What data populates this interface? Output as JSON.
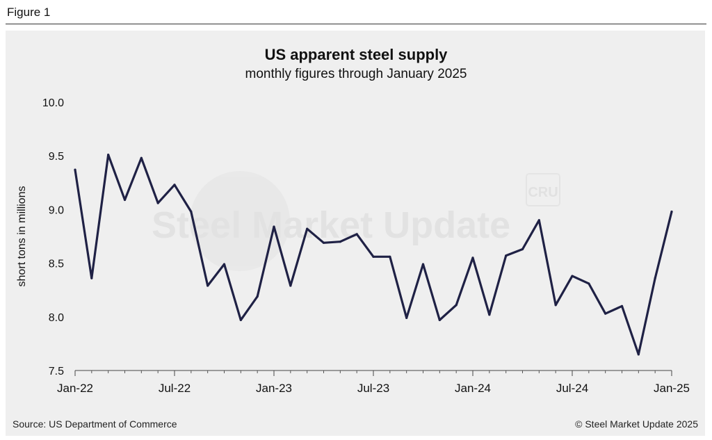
{
  "figure_label": "Figure 1",
  "chart_data": {
    "type": "line",
    "title": "US apparent steel supply",
    "subtitle": "monthly figures through January 2025",
    "xlabel": "",
    "ylabel": "short tons in millions",
    "ylim": [
      7.5,
      10.0
    ],
    "yticks": [
      "7.5",
      "8.0",
      "8.5",
      "9.0",
      "9.5",
      "10.0"
    ],
    "xtick_labels": [
      {
        "index": 0,
        "label": "Jan-22"
      },
      {
        "index": 6,
        "label": "Jul-22"
      },
      {
        "index": 12,
        "label": "Jan-23"
      },
      {
        "index": 18,
        "label": "Jul-23"
      },
      {
        "index": 24,
        "label": "Jan-24"
      },
      {
        "index": 30,
        "label": "Jul-24"
      },
      {
        "index": 36,
        "label": "Jan-25"
      }
    ],
    "categories": [
      "Jan-22",
      "Feb-22",
      "Mar-22",
      "Apr-22",
      "May-22",
      "Jun-22",
      "Jul-22",
      "Aug-22",
      "Sep-22",
      "Oct-22",
      "Nov-22",
      "Dec-22",
      "Jan-23",
      "Feb-23",
      "Mar-23",
      "Apr-23",
      "May-23",
      "Jun-23",
      "Jul-23",
      "Aug-23",
      "Sep-23",
      "Oct-23",
      "Nov-23",
      "Dec-23",
      "Jan-24",
      "Feb-24",
      "Mar-24",
      "Apr-24",
      "May-24",
      "Jun-24",
      "Jul-24",
      "Aug-24",
      "Sep-24",
      "Oct-24",
      "Nov-24",
      "Dec-24",
      "Jan-25"
    ],
    "series": [
      {
        "name": "US apparent steel supply",
        "color": "#1f2145",
        "values": [
          9.37,
          8.36,
          9.51,
          9.09,
          9.48,
          9.06,
          9.23,
          8.98,
          8.29,
          8.49,
          7.97,
          8.19,
          8.84,
          8.29,
          8.82,
          8.69,
          8.7,
          8.77,
          8.56,
          8.56,
          7.99,
          8.49,
          7.97,
          8.11,
          8.55,
          8.02,
          8.57,
          8.63,
          8.9,
          8.11,
          8.38,
          8.31,
          8.03,
          8.1,
          7.65,
          8.36,
          8.98
        ]
      }
    ]
  },
  "watermark": {
    "brand": "Steel Market Update",
    "logo_text": "CRU"
  },
  "footer": {
    "source": "Source: US Department of Commerce",
    "copyright": "© Steel Market Update 2025"
  }
}
